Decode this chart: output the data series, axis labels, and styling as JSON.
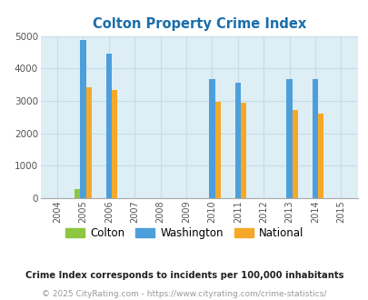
{
  "title": "Colton Property Crime Index",
  "title_color": "#1a6eaa",
  "background_color": "#ddeef5",
  "fig_bg_color": "#ffffff",
  "years": [
    2004,
    2005,
    2006,
    2007,
    2008,
    2009,
    2010,
    2011,
    2012,
    2013,
    2014,
    2015
  ],
  "colton": {
    "2004": 0,
    "2005": 280,
    "2006": 0,
    "2007": 0,
    "2008": 0,
    "2009": 0,
    "2010": 0,
    "2011": 0,
    "2012": 0,
    "2013": 0,
    "2014": 0,
    "2015": 0
  },
  "washington": {
    "2004": 0,
    "2005": 4880,
    "2006": 4450,
    "2007": 0,
    "2008": 0,
    "2009": 0,
    "2010": 3680,
    "2011": 3550,
    "2012": 0,
    "2013": 3680,
    "2014": 3680,
    "2015": 0
  },
  "national": {
    "2004": 0,
    "2005": 3420,
    "2006": 3340,
    "2007": 0,
    "2008": 0,
    "2009": 0,
    "2010": 2960,
    "2011": 2940,
    "2012": 0,
    "2013": 2720,
    "2014": 2600,
    "2015": 0
  },
  "colton_color": "#8dc641",
  "washington_color": "#4d9fdb",
  "national_color": "#f5a828",
  "ylim": [
    0,
    5000
  ],
  "yticks": [
    0,
    1000,
    2000,
    3000,
    4000,
    5000
  ],
  "bar_width": 0.22,
  "legend_labels": [
    "Colton",
    "Washington",
    "National"
  ],
  "footnote1": "Crime Index corresponds to incidents per 100,000 inhabitants",
  "footnote2": "© 2025 CityRating.com - https://www.cityrating.com/crime-statistics/",
  "footnote1_color": "#222222",
  "footnote2_color": "#999999",
  "grid_color": "#c8dce8"
}
